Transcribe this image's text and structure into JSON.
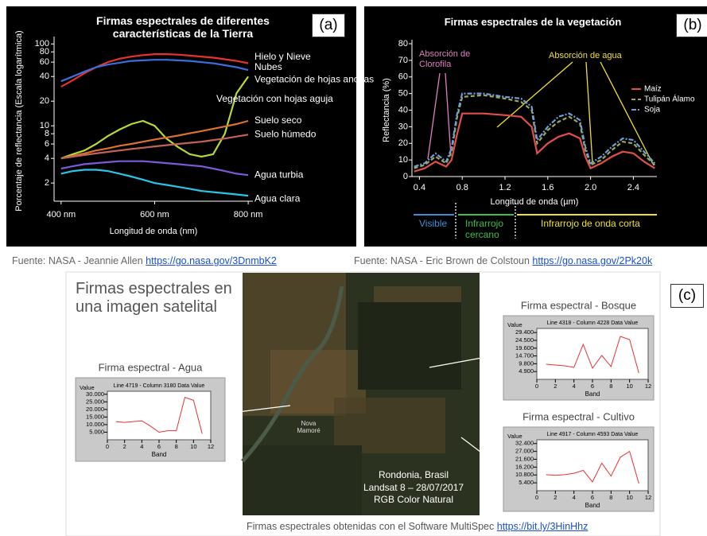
{
  "chart_data": [
    {
      "type": "line",
      "title": "Firmas espectrales de diferentes características de la Tierra",
      "panel_label": "(a)",
      "xlabel": "Longitud de onda (nm)",
      "ylabel": "Porcentaje de reflectancia (Escala logarítmica)",
      "yscale": "log",
      "x": [
        400,
        425,
        450,
        475,
        500,
        525,
        550,
        575,
        600,
        625,
        650,
        675,
        700,
        725,
        750,
        775,
        800
      ],
      "xlim": [
        385,
        810
      ],
      "xticks": [
        {
          "value": 400,
          "label": "400 nm"
        },
        {
          "value": 600,
          "label": "600 nm"
        },
        {
          "value": 800,
          "label": "800 nm"
        }
      ],
      "ylim": [
        1.2,
        110
      ],
      "yticks": [
        2,
        4,
        6,
        8,
        10,
        20,
        40,
        60,
        80,
        100
      ],
      "series": [
        {
          "name": "Hielo y Nieve",
          "color": "#e8332e",
          "values": [
            30,
            36,
            44,
            52,
            60,
            66,
            70,
            73,
            75,
            75,
            74,
            72,
            70,
            68,
            65,
            62,
            58
          ]
        },
        {
          "name": "Nubes",
          "color": "#3a6fd8",
          "values": [
            35,
            40,
            46,
            52,
            56,
            59,
            62,
            63,
            64,
            64,
            63,
            62,
            60,
            58,
            55,
            52,
            48
          ]
        },
        {
          "name": "Vegetación de hojas anchas",
          "color": "#b6d93a",
          "values": [
            4,
            4.5,
            5,
            6,
            7.5,
            9,
            10.5,
            11.5,
            10,
            7,
            5.5,
            4.5,
            4.2,
            4.5,
            8,
            25,
            40
          ]
        },
        {
          "name": "Suelo seco",
          "color": "#d9722a",
          "values": [
            4,
            4.3,
            4.6,
            5,
            5.3,
            5.7,
            6,
            6.4,
            6.8,
            7.2,
            7.6,
            8.1,
            8.6,
            9.2,
            9.8,
            10.5,
            11.5
          ]
        },
        {
          "name": "Suelo húmedo",
          "color": "#c0645a",
          "values": [
            4,
            4.2,
            4.4,
            4.6,
            4.8,
            5,
            5.2,
            5.4,
            5.6,
            5.8,
            6,
            6.2,
            6.4,
            6.7,
            7,
            7.4,
            7.8
          ]
        },
        {
          "name": "Agua turbia",
          "color": "#7a5ad8",
          "values": [
            3,
            3.2,
            3.4,
            3.5,
            3.6,
            3.7,
            3.7,
            3.7,
            3.6,
            3.5,
            3.4,
            3.3,
            3.2,
            3,
            2.8,
            2.6,
            2.5
          ]
        },
        {
          "name": "Agua clara",
          "color": "#29c5e6",
          "values": [
            2.6,
            2.8,
            2.9,
            2.9,
            2.8,
            2.6,
            2.4,
            2.2,
            2,
            1.9,
            1.8,
            1.7,
            1.6,
            1.55,
            1.5,
            1.45,
            1.4
          ]
        }
      ],
      "annotations": [
        "Vegetación con hojas aguja"
      ]
    },
    {
      "type": "line",
      "title": "Firmas espectrales de la vegetación",
      "panel_label": "(b)",
      "xlabel": "Longitud de onda (µm)",
      "ylabel": "Reflectancia (%)",
      "x": [
        0.35,
        0.45,
        0.55,
        0.65,
        0.7,
        0.75,
        0.8,
        1.0,
        1.2,
        1.35,
        1.45,
        1.5,
        1.6,
        1.7,
        1.8,
        1.9,
        1.95,
        2.0,
        2.1,
        2.2,
        2.3,
        2.4,
        2.5,
        2.6
      ],
      "xlim": [
        0.33,
        2.62
      ],
      "xticks": [
        0.4,
        0.8,
        1.2,
        1.6,
        {
          "value": 2,
          "label": "2.0"
        },
        2.4
      ],
      "ylim": [
        0,
        80
      ],
      "yticks": [
        0,
        10,
        20,
        30,
        40,
        50,
        60,
        70,
        80
      ],
      "series": [
        {
          "name": "Maíz",
          "color": "#e0504a",
          "linestyle": "solid",
          "values": [
            3,
            5,
            9,
            6,
            10,
            25,
            38,
            38,
            37,
            36,
            30,
            14,
            20,
            24,
            26,
            23,
            12,
            5,
            8,
            12,
            15,
            14,
            9,
            5
          ]
        },
        {
          "name": "Tulipán Álamo",
          "color": "#9aaa5a",
          "linestyle": "dashed",
          "values": [
            5,
            7,
            12,
            8,
            15,
            35,
            48,
            49,
            47,
            45,
            40,
            20,
            28,
            33,
            36,
            32,
            16,
            7,
            10,
            16,
            21,
            20,
            13,
            7
          ]
        },
        {
          "name": "Soja",
          "color": "#6f9fd8",
          "linestyle": "dashdot",
          "values": [
            6,
            8,
            14,
            9,
            17,
            37,
            50,
            50,
            48,
            47,
            42,
            22,
            30,
            36,
            38,
            34,
            18,
            8,
            12,
            18,
            23,
            22,
            15,
            8
          ]
        }
      ],
      "annotations": [
        "Absorción de Clorofila",
        "Absorción de agua"
      ],
      "bands": [
        "Visible",
        "Infrarrojo cercano",
        "Infrarrojo de onda corta"
      ]
    },
    {
      "type": "line",
      "title": "Firma espectral - Agua",
      "subtitle": "Line 4719 - Column 3180 Data Value",
      "xlabel": "Band",
      "ylabel": "Value",
      "x": [
        1,
        2,
        3,
        4,
        5,
        6,
        7,
        8,
        9,
        10,
        11
      ],
      "xlim": [
        0,
        12
      ],
      "xticks": [
        0,
        2,
        4,
        6,
        8,
        10,
        12
      ],
      "ylim": [
        0,
        32
      ],
      "yticks": [
        {
          "value": 5,
          "label": "5.000"
        },
        {
          "value": 10,
          "label": "10.000"
        },
        {
          "value": 15,
          "label": "15.000"
        },
        {
          "value": 20,
          "label": "20.000"
        },
        {
          "value": 25,
          "label": "25.000"
        },
        {
          "value": 30,
          "label": "30.000"
        }
      ],
      "series": [
        {
          "name": "",
          "color": "#e83030",
          "values": [
            12,
            11.5,
            12,
            12.5,
            9,
            5,
            6,
            6,
            28,
            26,
            4
          ]
        }
      ]
    },
    {
      "type": "line",
      "title": "Firma espectral - Bosque",
      "subtitle": "Line 4318 - Column 4228 Data Value",
      "xlabel": "Band",
      "ylabel": "Value",
      "x": [
        1,
        2,
        3,
        4,
        5,
        6,
        7,
        8,
        9,
        10,
        11
      ],
      "xlim": [
        0,
        12
      ],
      "xticks": [
        0,
        2,
        4,
        6,
        8,
        10,
        12
      ],
      "ylim": [
        0,
        32
      ],
      "yticks": [
        {
          "value": 4.9,
          "label": "4.900"
        },
        {
          "value": 9.8,
          "label": "9.800"
        },
        {
          "value": 14.7,
          "label": "14.700"
        },
        {
          "value": 19.6,
          "label": "19.600"
        },
        {
          "value": 24.5,
          "label": "24.500"
        },
        {
          "value": 29.4,
          "label": "29.400"
        }
      ],
      "series": [
        {
          "name": "",
          "color": "#e83030",
          "values": [
            9.5,
            9,
            8.5,
            7.5,
            22,
            7,
            15,
            8,
            27,
            25,
            4
          ]
        }
      ]
    },
    {
      "type": "line",
      "title": "Firma espectral - Cultivo",
      "subtitle": "Line 4917 - Column 4593 Data Value",
      "xlabel": "Band",
      "ylabel": "Value",
      "x": [
        1,
        2,
        3,
        4,
        5,
        6,
        7,
        8,
        9,
        10,
        11
      ],
      "xlim": [
        0,
        12
      ],
      "xticks": [
        0,
        2,
        4,
        6,
        8,
        10,
        12
      ],
      "ylim": [
        0,
        35
      ],
      "yticks": [
        {
          "value": 5.4,
          "label": "5.400"
        },
        {
          "value": 10.8,
          "label": "10.800"
        },
        {
          "value": 16.2,
          "label": "16.200"
        },
        {
          "value": 21.6,
          "label": "21.600"
        },
        {
          "value": 27,
          "label": "27.000"
        },
        {
          "value": 32.4,
          "label": "32.400"
        }
      ],
      "series": [
        {
          "name": "",
          "color": "#e83030",
          "values": [
            11,
            10.5,
            11,
            12,
            14,
            6,
            19,
            10,
            23,
            27,
            5
          ]
        }
      ]
    }
  ],
  "sources": [
    {
      "text": "Fuente: NASA - Jeannie Allen",
      "url": "https://go.nasa.gov/3DnmbK2"
    },
    {
      "text": "Fuente: NASA - Eric Brown de Colstoun",
      "url": "https://go.nasa.gov/2Pk20k"
    }
  ],
  "figure_c": {
    "label": "(c)",
    "title": "Firmas espectrales en una imagen satelital",
    "place": "Nova Mamoré",
    "location": [
      "Rondonia, Brasil",
      "Landsat 8 – 28/07/2017",
      "RGB Color Natural"
    ],
    "caption": "Firmas espectrales obtenidas con el Software MultiSpec",
    "url": "https://bit.ly/3HinHhz"
  }
}
